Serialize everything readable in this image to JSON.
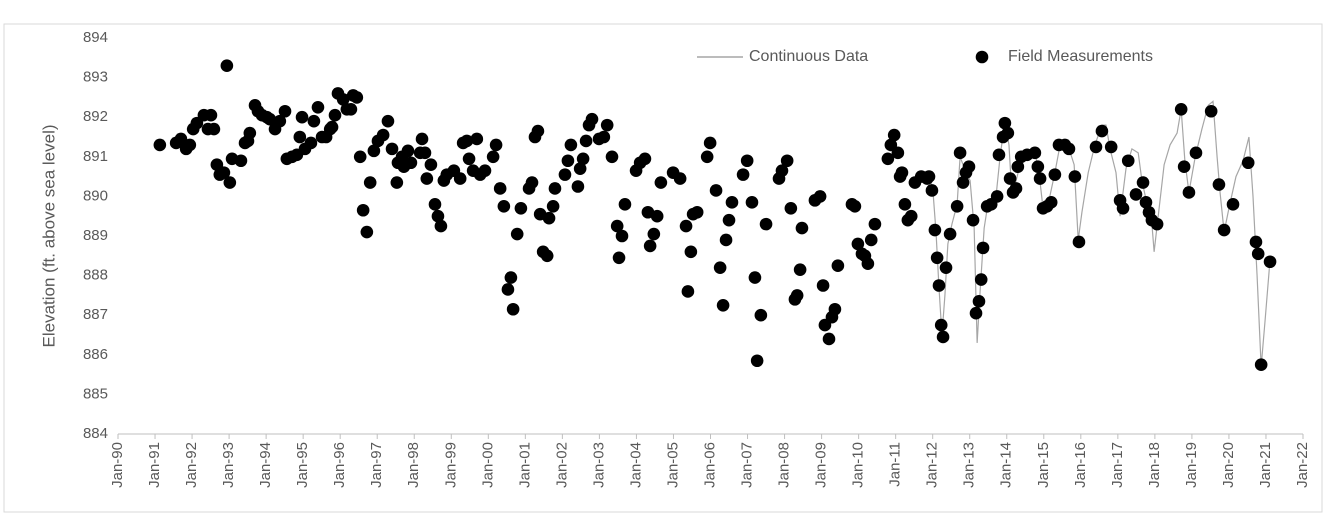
{
  "chart_data": {
    "type": "scatter",
    "y_label": "Elevation (ft. above sea level)",
    "xlim": [
      1990,
      2022
    ],
    "xticks": [
      {
        "value": 1990,
        "label": "Jan-90"
      },
      {
        "value": 1991,
        "label": "Jan-91"
      },
      {
        "value": 1992,
        "label": "Jan-92"
      },
      {
        "value": 1993,
        "label": "Jan-93"
      },
      {
        "value": 1994,
        "label": "Jan-94"
      },
      {
        "value": 1995,
        "label": "Jan-95"
      },
      {
        "value": 1996,
        "label": "Jan-96"
      },
      {
        "value": 1997,
        "label": "Jan-97"
      },
      {
        "value": 1998,
        "label": "Jan-98"
      },
      {
        "value": 1999,
        "label": "Jan-99"
      },
      {
        "value": 2000,
        "label": "Jan-00"
      },
      {
        "value": 2001,
        "label": "Jan-01"
      },
      {
        "value": 2002,
        "label": "Jan-02"
      },
      {
        "value": 2003,
        "label": "Jan-03"
      },
      {
        "value": 2004,
        "label": "Jan-04"
      },
      {
        "value": 2005,
        "label": "Jan-05"
      },
      {
        "value": 2006,
        "label": "Jan-06"
      },
      {
        "value": 2007,
        "label": "Jan-07"
      },
      {
        "value": 2008,
        "label": "Jan-08"
      },
      {
        "value": 2009,
        "label": "Jan-09"
      },
      {
        "value": 2010,
        "label": "Jan-10"
      },
      {
        "value": 2011,
        "label": "Jan-11"
      },
      {
        "value": 2012,
        "label": "Jan-12"
      },
      {
        "value": 2013,
        "label": "Jan-13"
      },
      {
        "value": 2014,
        "label": "Jan-14"
      },
      {
        "value": 2015,
        "label": "Jan-15"
      },
      {
        "value": 2016,
        "label": "Jan-16"
      },
      {
        "value": 2017,
        "label": "Jan-17"
      },
      {
        "value": 2018,
        "label": "Jan-18"
      },
      {
        "value": 2019,
        "label": "Jan-19"
      },
      {
        "value": 2020,
        "label": "Jan-20"
      },
      {
        "value": 2021,
        "label": "Jan-21"
      },
      {
        "value": 2022,
        "label": "Jan-22"
      }
    ],
    "ylim": [
      884,
      894
    ],
    "yticks": [
      884,
      885,
      886,
      887,
      888,
      889,
      890,
      891,
      892,
      893,
      894
    ],
    "grid": false,
    "legend": "top-right",
    "series": [
      {
        "name": "Continuous Data",
        "mark": "line",
        "color": "#a6a6a6",
        "x": [
          2011.74,
          2011.93,
          2012.01,
          2012.09,
          2012.17,
          2012.25,
          2012.33,
          2012.41,
          2012.52,
          2012.66,
          2012.74,
          2012.9,
          2013.01,
          2013.12,
          2013.2,
          2013.28,
          2013.39,
          2013.49,
          2013.71,
          2013.82,
          2013.95,
          2014.06,
          2014.14,
          2014.28,
          2014.41,
          2014.58,
          2014.74,
          2014.87,
          2014.98,
          2015.14,
          2015.3,
          2015.44,
          2015.65,
          2015.82,
          2015.93,
          2016.03,
          2016.2,
          2016.38,
          2016.57,
          2016.68,
          2016.79,
          2016.95,
          2017.06,
          2017.22,
          2017.38,
          2017.55,
          2017.65,
          2017.79,
          2017.92,
          2017.98,
          2018.09,
          2018.25,
          2018.41,
          2018.6,
          2018.71,
          2018.81,
          2018.92,
          2019.09,
          2019.27,
          2019.44,
          2019.57,
          2019.68,
          2019.76,
          2019.87,
          2020.0,
          2020.19,
          2020.38,
          2020.54,
          2020.65,
          2020.76,
          2020.87,
          2020.97,
          2021.11
        ],
        "values": [
          890.5,
          890.45,
          890.1,
          889.1,
          887.7,
          886.5,
          887.5,
          888.8,
          889.3,
          889.8,
          891.0,
          890.6,
          890.4,
          889.2,
          886.3,
          887.6,
          889.2,
          889.8,
          890.0,
          891.0,
          891.9,
          891.3,
          890.0,
          890.5,
          891.0,
          891.1,
          891.2,
          890.6,
          889.7,
          889.9,
          890.6,
          891.3,
          891.3,
          890.8,
          888.9,
          889.6,
          890.6,
          891.3,
          891.8,
          891.8,
          891.2,
          890.6,
          889.5,
          890.7,
          891.2,
          891.1,
          890.4,
          889.8,
          889.3,
          888.6,
          889.5,
          890.8,
          891.3,
          891.6,
          892.2,
          890.9,
          890.1,
          891.0,
          891.7,
          892.3,
          892.4,
          891.0,
          890.1,
          889.1,
          889.7,
          890.5,
          890.9,
          891.5,
          890.0,
          888.0,
          885.7,
          886.8,
          888.4
        ]
      },
      {
        "name": "Field Measurements",
        "mark": "marker",
        "color": "#000000",
        "x": [
          1991.13,
          1991.57,
          1991.7,
          1991.84,
          1991.94,
          1992.03,
          1992.13,
          1992.32,
          1992.43,
          1992.51,
          1992.59,
          1992.67,
          1992.75,
          1992.86,
          1992.94,
          1993.02,
          1993.08,
          1993.32,
          1993.43,
          1993.51,
          1993.56,
          1993.7,
          1993.78,
          1993.89,
          1994.02,
          1994.1,
          1994.24,
          1994.37,
          1994.51,
          1994.56,
          1994.7,
          1994.83,
          1994.91,
          1994.97,
          1995.05,
          1995.21,
          1995.29,
          1995.4,
          1995.51,
          1995.62,
          1995.73,
          1995.78,
          1995.86,
          1995.94,
          1996.08,
          1996.18,
          1996.29,
          1996.35,
          1996.45,
          1996.54,
          1996.62,
          1996.72,
          1996.81,
          1996.91,
          1997.02,
          1997.16,
          1997.29,
          1997.4,
          1997.53,
          1997.56,
          1997.67,
          1997.72,
          1997.83,
          1997.91,
          1998.16,
          1998.21,
          1998.29,
          1998.34,
          1998.45,
          1998.56,
          1998.64,
          1998.72,
          1998.8,
          1998.88,
          1999.07,
          1999.24,
          1999.32,
          1999.42,
          1999.48,
          1999.59,
          1999.69,
          1999.78,
          1999.91,
          2000.13,
          2000.21,
          2000.32,
          2000.42,
          2000.53,
          2000.61,
          2000.67,
          2000.78,
          2000.88,
          2001.1,
          2001.18,
          2001.26,
          2001.34,
          2001.4,
          2001.48,
          2001.59,
          2001.64,
          2001.75,
          2001.8,
          2002.07,
          2002.15,
          2002.23,
          2002.42,
          2002.48,
          2002.56,
          2002.64,
          2002.72,
          2002.8,
          2002.99,
          2003.12,
          2003.21,
          2003.34,
          2003.48,
          2003.53,
          2003.61,
          2003.69,
          2003.99,
          2004.1,
          2004.23,
          2004.31,
          2004.37,
          2004.47,
          2004.56,
          2004.66,
          2004.99,
          2005.18,
          2005.34,
          2005.39,
          2005.47,
          2005.53,
          2005.64,
          2005.91,
          2005.99,
          2006.15,
          2006.26,
          2006.34,
          2006.42,
          2006.5,
          2006.58,
          2006.88,
          2006.99,
          2007.12,
          2007.2,
          2007.26,
          2007.36,
          2007.5,
          2007.85,
          2007.93,
          2008.07,
          2008.17,
          2008.28,
          2008.34,
          2008.42,
          2008.47,
          2008.82,
          2008.96,
          2009.04,
          2009.09,
          2009.2,
          2009.28,
          2009.36,
          2009.44,
          2009.82,
          2009.9,
          2009.98,
          2010.09,
          2010.17,
          2010.25,
          2010.34,
          2010.44,
          2010.79,
          2010.87,
          2010.96,
          2011.06,
          2011.12,
          2011.17,
          2011.25,
          2011.33,
          2011.42,
          2011.52,
          2011.69,
          2011.85,
          2011.9,
          2011.98,
          2012.06,
          2012.12,
          2012.17,
          2012.23,
          2012.28,
          2012.36,
          2012.47,
          2012.66,
          2012.74,
          2012.82,
          2012.9,
          2012.98,
          2013.09,
          2013.17,
          2013.25,
          2013.31,
          2013.36,
          2013.47,
          2013.58,
          2013.74,
          2013.79,
          2013.9,
          2013.95,
          2014.03,
          2014.09,
          2014.17,
          2014.25,
          2014.3,
          2014.39,
          2014.55,
          2014.76,
          2014.84,
          2014.9,
          2014.98,
          2015.09,
          2015.2,
          2015.3,
          2015.41,
          2015.57,
          2015.68,
          2015.84,
          2015.95,
          2016.41,
          2016.57,
          2016.82,
          2017.06,
          2017.14,
          2017.28,
          2017.49,
          2017.68,
          2017.76,
          2017.84,
          2017.92,
          2018.06,
          2018.71,
          2018.79,
          2018.92,
          2019.11,
          2019.52,
          2019.73,
          2019.87,
          2020.11,
          2020.52,
          2020.73,
          2020.79,
          2020.87,
          2021.11
        ],
        "values": [
          891.3,
          891.35,
          891.45,
          891.2,
          891.3,
          891.7,
          891.85,
          892.05,
          891.7,
          892.05,
          891.7,
          890.8,
          890.55,
          890.6,
          893.3,
          890.35,
          890.95,
          890.9,
          891.35,
          891.4,
          891.6,
          892.3,
          892.15,
          892.05,
          892.0,
          891.95,
          891.7,
          891.9,
          892.15,
          890.95,
          891.0,
          891.05,
          891.5,
          892.0,
          891.2,
          891.35,
          891.9,
          892.25,
          891.5,
          891.5,
          891.7,
          891.75,
          892.05,
          892.6,
          892.45,
          892.2,
          892.2,
          892.55,
          892.5,
          891.0,
          889.65,
          889.1,
          890.35,
          891.15,
          891.4,
          891.55,
          891.9,
          891.2,
          890.35,
          890.85,
          891.0,
          890.75,
          891.15,
          890.85,
          891.1,
          891.45,
          891.1,
          890.45,
          890.8,
          889.8,
          889.5,
          889.25,
          890.4,
          890.55,
          890.65,
          890.45,
          891.35,
          891.4,
          890.95,
          890.65,
          891.45,
          890.55,
          890.65,
          891.0,
          891.3,
          890.2,
          889.75,
          887.65,
          887.95,
          887.15,
          889.05,
          889.7,
          890.2,
          890.35,
          891.5,
          891.65,
          889.55,
          888.6,
          888.5,
          889.45,
          889.75,
          890.2,
          890.55,
          890.9,
          891.3,
          890.25,
          890.7,
          890.95,
          891.4,
          891.8,
          891.95,
          891.45,
          891.5,
          891.8,
          891.0,
          889.25,
          888.45,
          889.0,
          889.8,
          890.65,
          890.85,
          890.95,
          889.6,
          888.75,
          889.05,
          889.5,
          890.35,
          890.6,
          890.45,
          889.25,
          887.6,
          888.6,
          889.55,
          889.6,
          891.0,
          891.35,
          890.15,
          888.2,
          887.25,
          888.9,
          889.4,
          889.85,
          890.55,
          890.9,
          889.85,
          887.95,
          885.85,
          887.0,
          889.3,
          890.45,
          890.65,
          890.9,
          889.7,
          887.4,
          887.5,
          888.15,
          889.2,
          889.9,
          890.0,
          887.75,
          886.75,
          886.4,
          886.95,
          887.15,
          888.25,
          889.8,
          889.75,
          888.8,
          888.55,
          888.5,
          888.3,
          888.9,
          889.3,
          890.95,
          891.3,
          891.55,
          891.1,
          890.5,
          890.6,
          889.8,
          889.4,
          889.5,
          890.35,
          890.5,
          890.45,
          890.5,
          890.15,
          889.15,
          888.45,
          887.75,
          886.75,
          886.45,
          888.2,
          889.05,
          889.75,
          891.1,
          890.35,
          890.6,
          890.75,
          889.4,
          887.05,
          887.35,
          887.9,
          888.7,
          889.75,
          889.8,
          890.0,
          891.05,
          891.5,
          891.85,
          891.6,
          890.45,
          890.1,
          890.2,
          890.75,
          891.0,
          891.05,
          891.1,
          890.75,
          890.45,
          889.7,
          889.75,
          889.85,
          890.55,
          891.3,
          891.3,
          891.2,
          890.5,
          888.85,
          891.25,
          891.65,
          891.25,
          889.9,
          889.7,
          890.9,
          890.05,
          890.35,
          889.85,
          889.6,
          889.4,
          889.3,
          892.2,
          890.75,
          890.1,
          891.1,
          892.15,
          890.3,
          889.15,
          889.8,
          890.85,
          888.85,
          888.55,
          885.75,
          888.35
        ]
      }
    ]
  }
}
